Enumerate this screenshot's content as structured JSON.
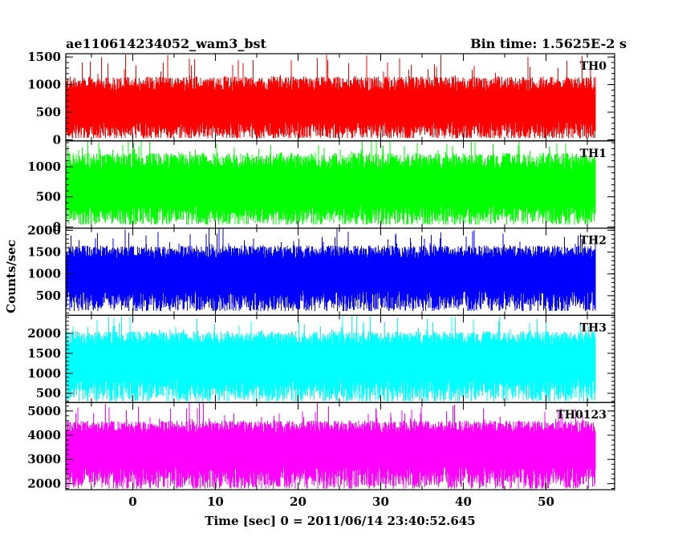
{
  "header": {
    "title": "ae110614234052_wam3_bst",
    "bin_time": "Bin time: 1.5625E-2 s"
  },
  "chart_data": {
    "type": "line",
    "title": "ae110614234052_wam3_bst",
    "xlabel": "Time [sec] 0 = 2011/06/14 23:40:52.645",
    "ylabel": "Counts/sec",
    "xlim": [
      -8.1,
      58.3
    ],
    "x_ticks": [
      0,
      10,
      20,
      30,
      40,
      50
    ],
    "x_tick_labels": [
      "0",
      "10",
      "20",
      "30",
      "40",
      "50"
    ],
    "data_x_range": [
      -8.0,
      56.0
    ],
    "bin_time_s": 0.015625,
    "grid": false,
    "panels": [
      {
        "name": "TH0",
        "color": "#ff0000",
        "ylim": [
          -20,
          1560
        ],
        "yticks": [
          0,
          500,
          1000,
          1500
        ],
        "ytick_labels": [
          "0",
          "500",
          "1000",
          "1500"
        ],
        "baseline": 560,
        "low": 30,
        "high_typical": 1150,
        "high_max": 1560
      },
      {
        "name": "TH1",
        "color": "#00ff00",
        "ylim": [
          -20,
          1430
        ],
        "yticks": [
          0,
          500,
          1000
        ],
        "ytick_labels": [
          "0",
          "500",
          "1000"
        ],
        "baseline": 620,
        "low": 40,
        "high_typical": 1230,
        "high_max": 1430
      },
      {
        "name": "TH2",
        "color": "#0000ff",
        "ylim": [
          50,
          2050
        ],
        "yticks": [
          500,
          1000,
          1500,
          2000
        ],
        "ytick_labels": [
          "500",
          "1000",
          "1500",
          "2000"
        ],
        "baseline": 1000,
        "low": 150,
        "high_typical": 1650,
        "high_max": 2050
      },
      {
        "name": "TH3",
        "color": "#00ffff",
        "ylim": [
          270,
          2450
        ],
        "yticks": [
          500,
          1000,
          1500,
          2000
        ],
        "ytick_labels": [
          "500",
          "1000",
          "1500",
          "2000"
        ],
        "baseline": 1300,
        "low": 300,
        "high_typical": 2050,
        "high_max": 2450
      },
      {
        "name": "TH0123",
        "color": "#ff00ff",
        "ylim": [
          1750,
          5350
        ],
        "yticks": [
          2000,
          3000,
          4000,
          5000
        ],
        "ytick_labels": [
          "2000",
          "3000",
          "4000",
          "5000"
        ],
        "baseline": 3450,
        "low": 1800,
        "high_typical": 4600,
        "high_max": 5350
      }
    ]
  }
}
